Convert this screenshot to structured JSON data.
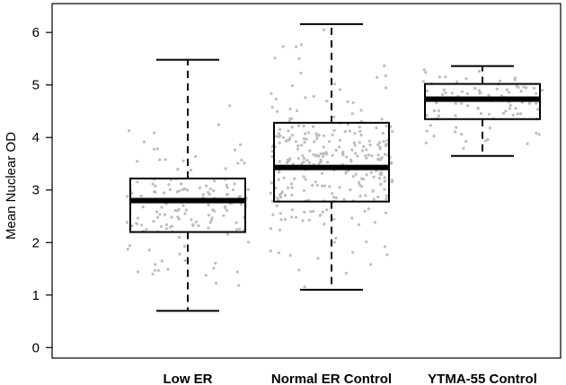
{
  "chart_data": {
    "type": "box",
    "ylabel": "Mean Nuclear OD",
    "xlabel": "",
    "title": "",
    "ylim": [
      -0.2,
      6.55
    ],
    "yticks": [
      "0",
      "1",
      "2",
      "3",
      "4",
      "5",
      "6"
    ],
    "categories": [
      "Low ER",
      "Normal ER Control",
      "YTMA-55 Control"
    ],
    "boxes": [
      {
        "category": "Low ER",
        "whisker_low": 0.7,
        "q1": 2.2,
        "median": 2.8,
        "q3": 3.22,
        "whisker_high": 5.48
      },
      {
        "category": "Normal ER Control",
        "whisker_low": 1.1,
        "q1": 2.78,
        "median": 3.43,
        "q3": 4.28,
        "whisker_high": 6.16
      },
      {
        "category": "YTMA-55 Control",
        "whisker_low": 3.65,
        "q1": 4.35,
        "median": 4.73,
        "q3": 5.02,
        "whisker_high": 5.36
      }
    ],
    "jitter_points": {
      "color": "#bdbdbd",
      "counts": [
        150,
        300,
        90
      ]
    },
    "grid": false,
    "box_frame": true
  }
}
